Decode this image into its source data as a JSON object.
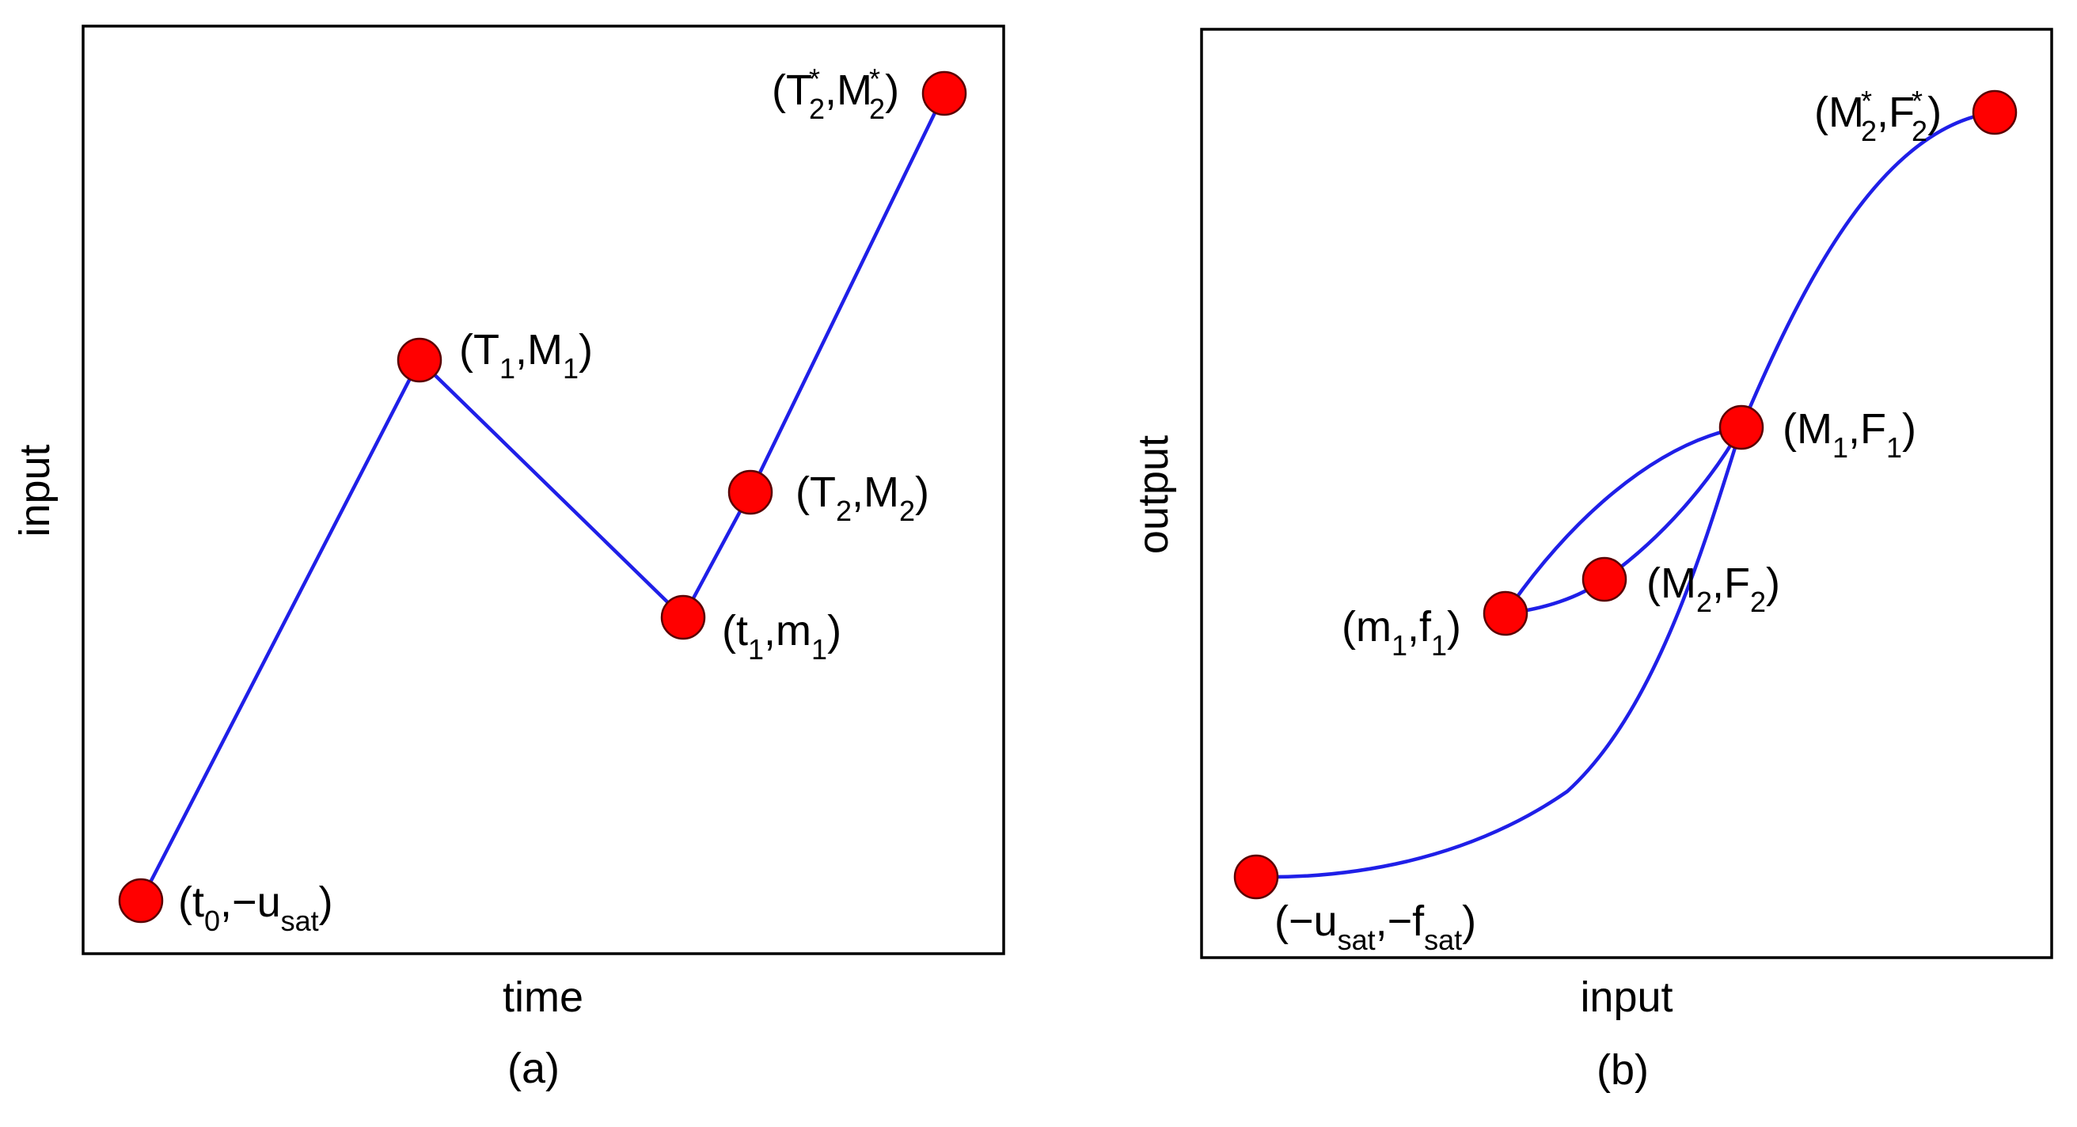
{
  "panel_a": {
    "caption": "(a)",
    "xlabel": "time",
    "ylabel": "input",
    "points": {
      "t0": "(t₀,−uₛₐₜ)",
      "T1M1": "(T₁,M₁)",
      "t1m1": "(t₁,m₁)",
      "T2M2": "(T₂,M₂)",
      "T2sM2s": "(T₂*,M₂*)"
    },
    "label_parts": {
      "t0": {
        "open": "(t",
        "s1": "0",
        "mid": ",−u",
        "s2": "sat",
        "close": ")"
      },
      "T1M1": {
        "open": "(T",
        "s1": "1",
        "mid": ",M",
        "s2": "1",
        "close": ")"
      },
      "t1m1": {
        "open": "(t",
        "s1": "1",
        "mid": ",m",
        "s2": "1",
        "close": ")"
      },
      "T2M2": {
        "open": "(T",
        "s1": "2",
        "mid": ",M",
        "s2": "2",
        "close": ")"
      },
      "T2sM2s": {
        "open": "(T",
        "sup1": "*",
        "s1": "2",
        "mid": ",M",
        "sup2": "*",
        "s2": "2",
        "close": ")"
      }
    }
  },
  "panel_b": {
    "caption": "(b)",
    "xlabel": "input",
    "ylabel": "output",
    "label_parts": {
      "usat": {
        "open": "(−u",
        "s1": "sat",
        "mid": ",−f",
        "s2": "sat",
        "close": ")"
      },
      "m1f1": {
        "open": "(m",
        "s1": "1",
        "mid": ",f",
        "s2": "1",
        "close": ")"
      },
      "M2F2": {
        "open": "(M",
        "s1": "2",
        "mid": ",F",
        "s2": "2",
        "close": ")"
      },
      "M1F1": {
        "open": "(M",
        "s1": "1",
        "mid": ",F",
        "s2": "1",
        "close": ")"
      },
      "M2sF2s": {
        "open": "(M",
        "sup1": "*",
        "s1": "2",
        "mid": ",F",
        "sup2": "*",
        "s2": "2",
        "close": ")"
      }
    }
  },
  "colors": {
    "curve": "#1f1fe8",
    "point": "#ff0000",
    "frame": "#000000"
  }
}
